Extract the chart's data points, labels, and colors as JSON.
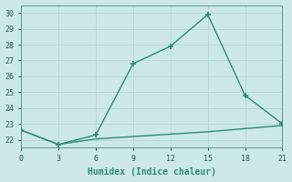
{
  "xlabel": "Humidex (Indice chaleur)",
  "line1_x": [
    0,
    3,
    6,
    9,
    12,
    15,
    18,
    21
  ],
  "line1_y": [
    22.6,
    21.7,
    22.3,
    26.8,
    27.9,
    29.9,
    24.8,
    23.0
  ],
  "line2_x": [
    0,
    3,
    6,
    9,
    12,
    15,
    18,
    21
  ],
  "line2_y": [
    22.6,
    21.7,
    22.05,
    22.2,
    22.35,
    22.5,
    22.7,
    22.9
  ],
  "line_color": "#2e8b7a",
  "bg_color": "#cce8e8",
  "grid_color": "#b8d8d8",
  "xlim": [
    0,
    21
  ],
  "ylim": [
    21.5,
    30.5
  ],
  "yticks": [
    22,
    23,
    24,
    25,
    26,
    27,
    28,
    29,
    30
  ],
  "xticks": [
    0,
    3,
    6,
    9,
    12,
    15,
    18,
    21
  ],
  "marker": "+",
  "markersize": 4,
  "linewidth": 1.0,
  "tick_fontsize": 6,
  "xlabel_fontsize": 7
}
